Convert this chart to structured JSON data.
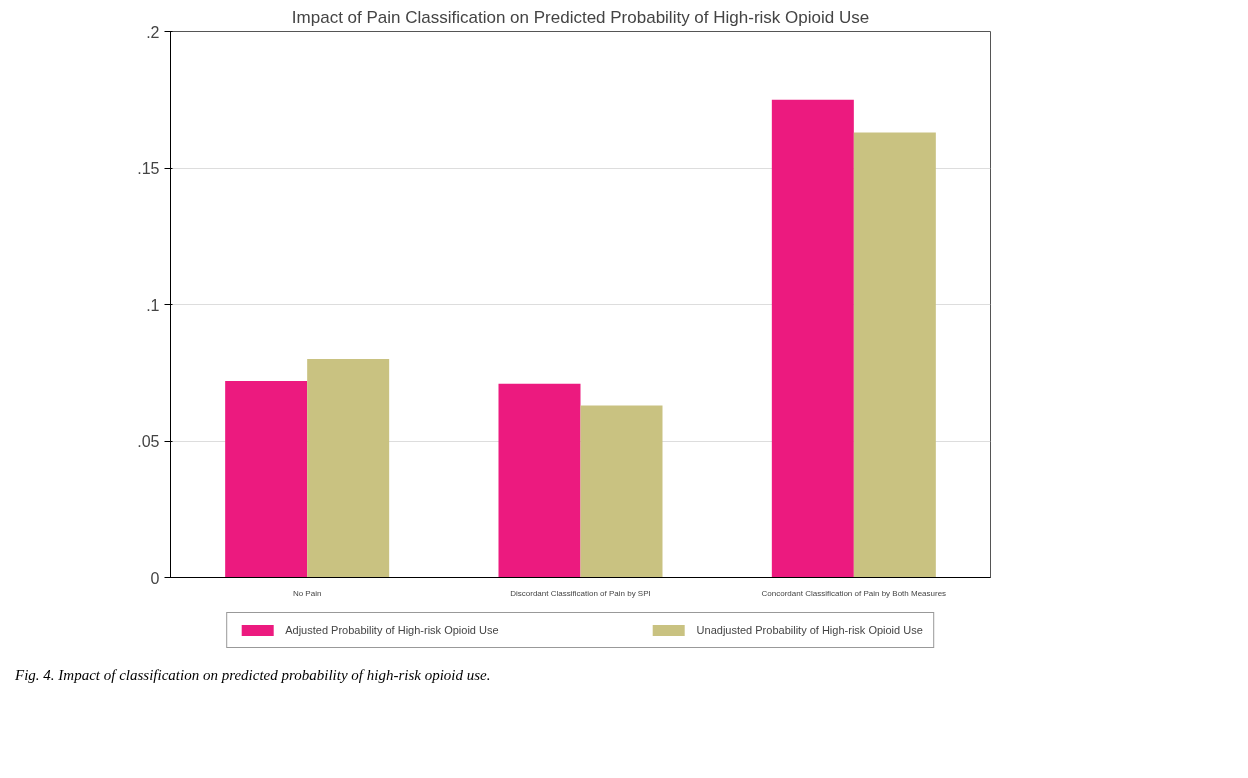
{
  "chart_data": {
    "type": "bar",
    "title": "Impact of Pain Classification on Predicted Probability of High-risk Opioid Use",
    "categories": [
      "No Pain",
      "Discordant Classification of Pain by SPI",
      "Concordant Classification of Pain by Both Measures"
    ],
    "series": [
      {
        "name": "Adjusted Probability of High-risk Opioid Use",
        "color": "#ec1a7f",
        "values": [
          0.072,
          0.071,
          0.175
        ]
      },
      {
        "name": "Unadjusted Probability of High-risk Opioid Use",
        "color": "#c9c281",
        "values": [
          0.08,
          0.063,
          0.163
        ]
      }
    ],
    "ylim": [
      0,
      0.2
    ],
    "yticks": [
      {
        "value": 0,
        "label": "0"
      },
      {
        "value": 0.05,
        "label": ".05"
      },
      {
        "value": 0.1,
        "label": ".1"
      },
      {
        "value": 0.15,
        "label": ".15"
      },
      {
        "value": 0.2,
        "label": ".2"
      }
    ],
    "grid": "y",
    "legend": "bottom",
    "annotations": [
      "Fig. 4. Impact of classification on predicted probability of high-risk opioid use."
    ]
  }
}
